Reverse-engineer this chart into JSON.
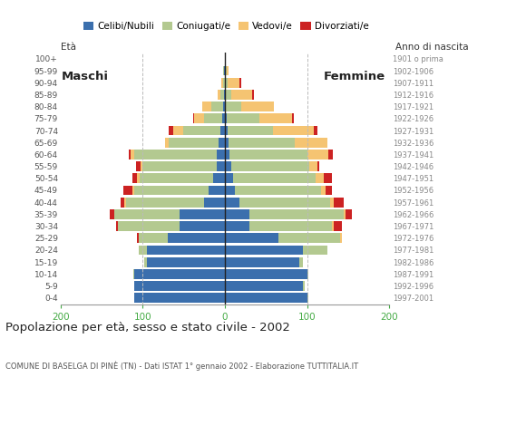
{
  "age_groups": [
    "0-4",
    "5-9",
    "10-14",
    "15-19",
    "20-24",
    "25-29",
    "30-34",
    "35-39",
    "40-44",
    "45-49",
    "50-54",
    "55-59",
    "60-64",
    "65-69",
    "70-74",
    "75-79",
    "80-84",
    "85-89",
    "90-94",
    "95-99",
    "100+"
  ],
  "birth_years": [
    "1997-2001",
    "1992-1996",
    "1987-1991",
    "1982-1986",
    "1977-1981",
    "1972-1976",
    "1967-1971",
    "1962-1966",
    "1957-1961",
    "1952-1956",
    "1947-1951",
    "1942-1946",
    "1937-1941",
    "1932-1936",
    "1927-1931",
    "1922-1926",
    "1917-1921",
    "1912-1916",
    "1907-1911",
    "1902-1906",
    "1901 o prima"
  ],
  "male": {
    "celibi": [
      110,
      110,
      110,
      95,
      95,
      70,
      55,
      55,
      25,
      20,
      14,
      10,
      10,
      8,
      6,
      3,
      2,
      1,
      0,
      1,
      0
    ],
    "coniugati": [
      0,
      0,
      1,
      3,
      10,
      35,
      75,
      80,
      95,
      90,
      90,
      90,
      100,
      60,
      45,
      22,
      15,
      5,
      2,
      1,
      0
    ],
    "vedovi": [
      0,
      0,
      0,
      0,
      0,
      0,
      0,
      0,
      2,
      2,
      3,
      3,
      5,
      5,
      12,
      12,
      10,
      3,
      2,
      0,
      0
    ],
    "divorziati": [
      0,
      0,
      0,
      0,
      0,
      2,
      2,
      5,
      5,
      12,
      5,
      5,
      2,
      0,
      5,
      2,
      0,
      0,
      0,
      0,
      0
    ]
  },
  "female": {
    "celibi": [
      100,
      95,
      100,
      90,
      95,
      65,
      30,
      30,
      18,
      12,
      10,
      8,
      6,
      5,
      3,
      2,
      0,
      0,
      0,
      0,
      0
    ],
    "coniugati": [
      2,
      2,
      2,
      5,
      30,
      75,
      100,
      115,
      110,
      105,
      100,
      95,
      95,
      80,
      55,
      40,
      20,
      8,
      3,
      2,
      0
    ],
    "vedovi": [
      0,
      0,
      0,
      0,
      0,
      2,
      2,
      2,
      5,
      5,
      10,
      10,
      25,
      40,
      50,
      40,
      40,
      25,
      15,
      3,
      1
    ],
    "divorziati": [
      0,
      0,
      0,
      0,
      0,
      0,
      10,
      8,
      12,
      8,
      10,
      2,
      5,
      0,
      5,
      2,
      0,
      2,
      2,
      0,
      0
    ]
  },
  "colors": {
    "celibi": "#3b6fad",
    "coniugati": "#b3c990",
    "vedovi": "#f5c472",
    "divorziati": "#cc2222"
  },
  "title": "Popolazione per età, sesso e stato civile - 2002",
  "subtitle": "COMUNE DI BASELGA DI PINÈ (TN) - Dati ISTAT 1° gennaio 2002 - Elaborazione TUTTITALIA.IT",
  "label_maschi": "Maschi",
  "label_femmine": "Femmine",
  "label_eta": "Età",
  "label_anno": "Anno di nascita",
  "legend_labels": [
    "Celibi/Nubili",
    "Coniugati/e",
    "Vedovi/e",
    "Divorziati/e"
  ],
  "xlim": 200,
  "background_color": "#ffffff",
  "grid_color": "#bbbbbb",
  "axis_color": "#44aa44",
  "spine_color": "#999999"
}
